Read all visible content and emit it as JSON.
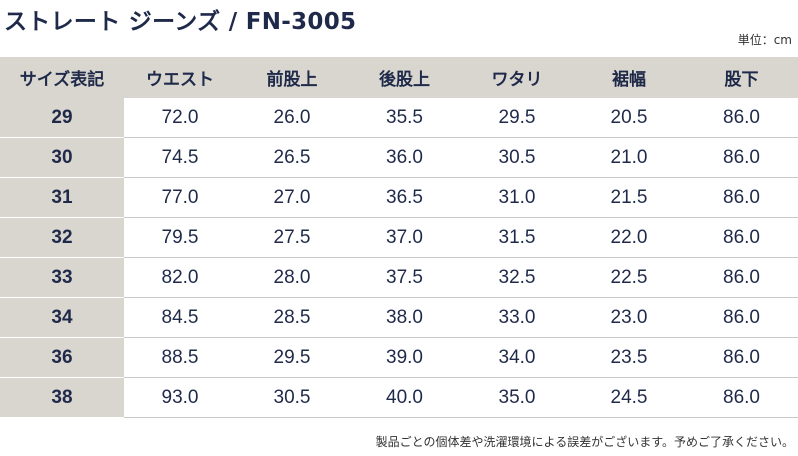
{
  "title": "ストレート ジーンズ / FN-3005",
  "unit": "単位：cm",
  "headers": [
    "サイズ表記",
    "ウエスト",
    "前股上",
    "後股上",
    "ワタリ",
    "裾幅",
    "股下"
  ],
  "rows": [
    [
      "29",
      "72.0",
      "26.0",
      "35.5",
      "29.5",
      "20.5",
      "86.0"
    ],
    [
      "30",
      "74.5",
      "26.5",
      "36.0",
      "30.5",
      "21.0",
      "86.0"
    ],
    [
      "31",
      "77.0",
      "27.0",
      "36.5",
      "31.0",
      "21.5",
      "86.0"
    ],
    [
      "32",
      "79.5",
      "27.5",
      "37.0",
      "31.5",
      "22.0",
      "86.0"
    ],
    [
      "33",
      "82.0",
      "28.0",
      "37.5",
      "32.5",
      "22.5",
      "86.0"
    ],
    [
      "34",
      "84.5",
      "28.5",
      "38.0",
      "33.0",
      "23.0",
      "86.0"
    ],
    [
      "36",
      "88.5",
      "29.5",
      "39.0",
      "34.0",
      "23.5",
      "86.0"
    ],
    [
      "38",
      "93.0",
      "30.5",
      "40.0",
      "35.0",
      "24.5",
      "86.0"
    ]
  ],
  "note": "製品ごとの個体差や洗濯環境による誤差がございます。予めご了承ください。"
}
